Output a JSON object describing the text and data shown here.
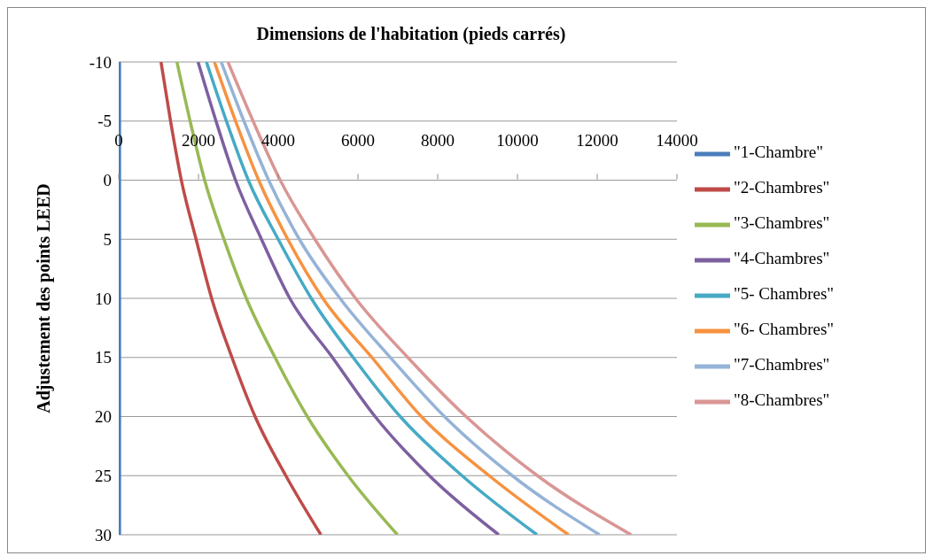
{
  "chart_data": {
    "type": "line",
    "xlabel": "Dimensions de l'habitation (pieds carrés)",
    "ylabel": "Adjustement des points LEED",
    "xlim": [
      0,
      14000
    ],
    "xticks": [
      0,
      2000,
      4000,
      6000,
      8000,
      10000,
      12000,
      14000
    ],
    "ylim": [
      30,
      -10
    ],
    "yticks": [
      -10,
      -5,
      0,
      5,
      10,
      15,
      20,
      25,
      30
    ],
    "grid": "y",
    "legend": "right",
    "marker": "none",
    "line_style": "solid",
    "series": [
      {
        "name": "\"1-Chambre\"",
        "color": "#4a7ebb",
        "x": [
          20,
          20,
          20,
          20,
          20,
          20,
          20,
          20,
          20
        ],
        "values": [
          -10,
          -5,
          0,
          5,
          10,
          15,
          20,
          25,
          30
        ]
      },
      {
        "name": "\"2-Chambres\"",
        "color": "#be4b48",
        "x": [
          1060,
          1300,
          1570,
          1940,
          2330,
          2840,
          3420,
          4190,
          5070
        ],
        "values": [
          -10,
          -5,
          0,
          5,
          10,
          15,
          20,
          25,
          30
        ]
      },
      {
        "name": "\"3-Chambres\"",
        "color": "#98b954",
        "x": [
          1460,
          1790,
          2155,
          2640,
          3200,
          3920,
          4730,
          5750,
          6990
        ],
        "values": [
          -10,
          -5,
          0,
          5,
          10,
          15,
          20,
          25,
          30
        ]
      },
      {
        "name": "\"4-Chambres\"",
        "color": "#7d60a0",
        "x": [
          1990,
          2440,
          2930,
          3580,
          4290,
          5360,
          6430,
          7790,
          9530
        ],
        "values": [
          -10,
          -5,
          0,
          5,
          10,
          15,
          20,
          25,
          30
        ]
      },
      {
        "name": "\"5- Chambres\"",
        "color": "#46aac5",
        "x": [
          2200,
          2700,
          3250,
          4000,
          4830,
          5880,
          7060,
          8610,
          10490
        ],
        "values": [
          -10,
          -5,
          0,
          5,
          10,
          15,
          20,
          25,
          30
        ]
      },
      {
        "name": "\"6- Chambres\"",
        "color": "#f69240",
        "x": [
          2400,
          2930,
          3510,
          4240,
          5120,
          6350,
          7590,
          9290,
          11280
        ],
        "values": [
          -10,
          -5,
          0,
          5,
          10,
          15,
          20,
          25,
          30
        ]
      },
      {
        "name": "\"7-Chambres\"",
        "color": "#95b3d7",
        "x": [
          2570,
          3140,
          3760,
          4530,
          5550,
          6810,
          8170,
          9870,
          12060
        ],
        "values": [
          -10,
          -5,
          0,
          5,
          10,
          15,
          20,
          25,
          30
        ]
      },
      {
        "name": "\"8-Chambres\"",
        "color": "#d99694",
        "x": [
          2740,
          3370,
          4050,
          4920,
          5940,
          7250,
          8710,
          10500,
          12850
        ],
        "values": [
          -10,
          -5,
          0,
          5,
          10,
          15,
          20,
          25,
          30
        ]
      }
    ]
  }
}
